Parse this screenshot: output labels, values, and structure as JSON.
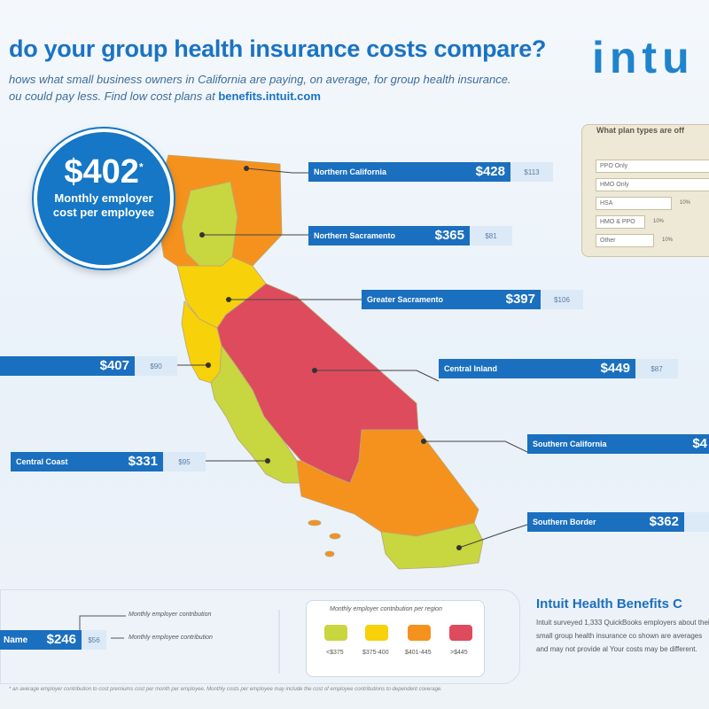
{
  "header": {
    "title": "do your group health insurance costs compare?",
    "subtitle_line1": "hows what small business owners in California are paying, on average, for group health insurance.",
    "subtitle_line2": "ou could pay less. Find low cost plans at",
    "link": "benefits.intuit.com",
    "logo": "intu"
  },
  "bubble": {
    "amount": "$402",
    "asterisk": "*",
    "description": "Monthly employer cost per employee"
  },
  "regions": [
    {
      "name": "Northern California",
      "cost": "$428",
      "contribution": "$113"
    },
    {
      "name": "Northern Sacramento",
      "cost": "$365",
      "contribution": "$81"
    },
    {
      "name": "Greater Sacramento",
      "cost": "$397",
      "contribution": "$106"
    },
    {
      "name": "",
      "cost": "$407",
      "contribution": "$90"
    },
    {
      "name": "Central Inland",
      "cost": "$449",
      "contribution": "$87"
    },
    {
      "name": "Central Coast",
      "cost": "$331",
      "contribution": "$95"
    },
    {
      "name": "Southern California",
      "cost": "$4",
      "contribution": ""
    },
    {
      "name": "Southern Border",
      "cost": "$362",
      "contribution": ""
    }
  ],
  "plan_panel": {
    "title": "What plan types are off",
    "rows": [
      {
        "label": "PPO Only",
        "pct": ""
      },
      {
        "label": "HMO Only",
        "pct": ""
      },
      {
        "label": "HSA",
        "pct": "10%"
      },
      {
        "label": "HMO & PPO",
        "pct": "10%"
      },
      {
        "label": "Other",
        "pct": "10%"
      }
    ]
  },
  "legend": {
    "sample_name": "Name",
    "sample_cost": "$246",
    "sample_contrib": "$56",
    "cost_note": "Monthly employer contribution",
    "contrib_note": "Monthly employee contribution",
    "scale_title": "Monthly employer contribution per region",
    "scale": [
      {
        "label": "<$375",
        "color": "#c8d63f"
      },
      {
        "label": "$375-400",
        "color": "#f7d10a"
      },
      {
        "label": "$401-445",
        "color": "#f5921e"
      },
      {
        "label": ">$445",
        "color": "#de4b5c"
      }
    ]
  },
  "info": {
    "title": "Intuit Health Benefits C",
    "text": "Intuit surveyed 1,333 QuickBooks employers about their small group health insurance co shown are averages and may not provide al Your costs may be different."
  },
  "footnote": "* an average employer contribution to cost premiums cost per month per employee. Monthly costs per employee may include the cost of employee contributions to dependent coverage."
}
